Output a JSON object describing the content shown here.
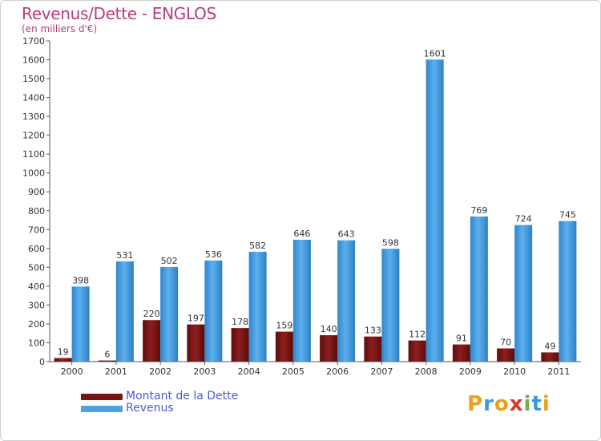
{
  "chart_data": {
    "type": "bar",
    "title": "Revenus/Dette - ENGLOS",
    "subtitle": "(en milliers d'€)",
    "categories": [
      "2000",
      "2001",
      "2002",
      "2003",
      "2004",
      "2005",
      "2006",
      "2007",
      "2008",
      "2009",
      "2010",
      "2011"
    ],
    "series": [
      {
        "name": "Montant de la Dette",
        "color": "#7a1414",
        "values": [
          19,
          6,
          220,
          197,
          178,
          159,
          140,
          133,
          112,
          91,
          70,
          49
        ]
      },
      {
        "name": "Revenus",
        "color": "#4aa3e6",
        "values": [
          398,
          531,
          502,
          536,
          582,
          646,
          643,
          598,
          1601,
          769,
          724,
          745
        ]
      }
    ],
    "ylim": [
      0,
      1700
    ],
    "yticks": [
      0,
      100,
      200,
      300,
      400,
      500,
      600,
      700,
      800,
      900,
      1000,
      1100,
      1200,
      1300,
      1400,
      1500,
      1600,
      1700
    ],
    "grid": false,
    "legend": "bottom-left"
  },
  "logo": {
    "letters": [
      "P",
      "r",
      "o",
      "x",
      "i",
      "t",
      "i"
    ],
    "colors": [
      "#e8a020",
      "#3a9ad9",
      "#e8a020",
      "#d9342b",
      "#6ab04c",
      "#3a9ad9",
      "#e8a020"
    ]
  }
}
